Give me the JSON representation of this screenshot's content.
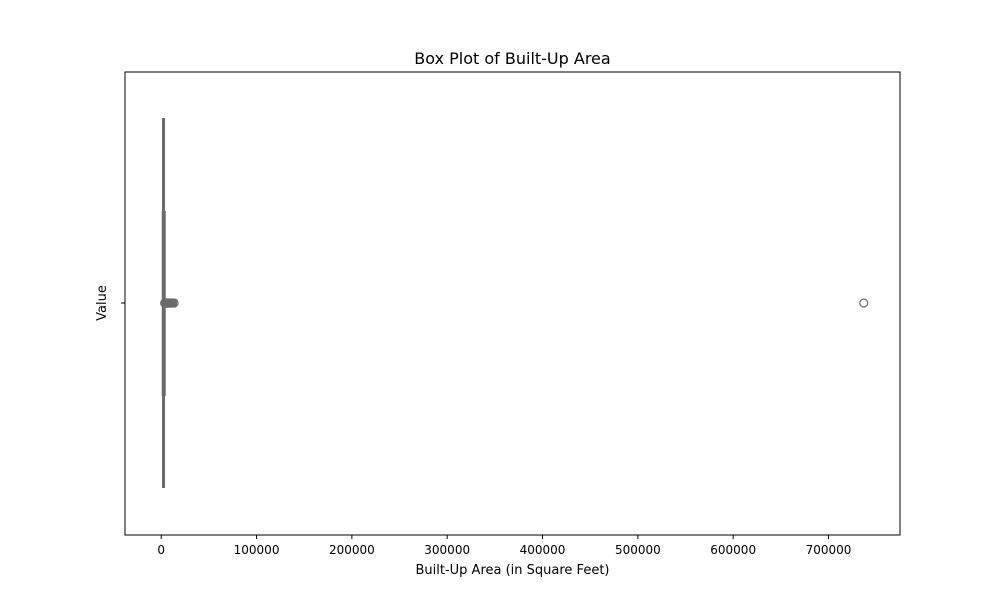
{
  "chart_data": {
    "type": "box",
    "title": "Box Plot of Built-Up Area",
    "xlabel": "Built-Up Area (in Square Feet)",
    "ylabel": "Value",
    "orientation": "horizontal",
    "xlim": [
      -38000,
      775000
    ],
    "xticks": [
      0,
      100000,
      200000,
      300000,
      400000,
      500000,
      600000,
      700000
    ],
    "xtick_labels": [
      "0",
      "100000",
      "200000",
      "300000",
      "400000",
      "500000",
      "600000",
      "700000"
    ],
    "grid": false,
    "legend": "none",
    "box": {
      "whisker_low": 1600,
      "q1": 1600,
      "median": 2400,
      "q3": 3300,
      "whisker_high": 3300
    },
    "outliers": [
      3600,
      4000,
      4500,
      5000,
      5500,
      6000,
      6500,
      7000,
      7500,
      8000,
      9000,
      10000,
      11000,
      12000,
      13500,
      737000
    ],
    "colors": {
      "box_edge": "#6b6b6b",
      "box_fill": "#b3b3b3",
      "outlier_edge": "#6b6b6b",
      "axes": "#000000",
      "background": "#ffffff"
    }
  }
}
